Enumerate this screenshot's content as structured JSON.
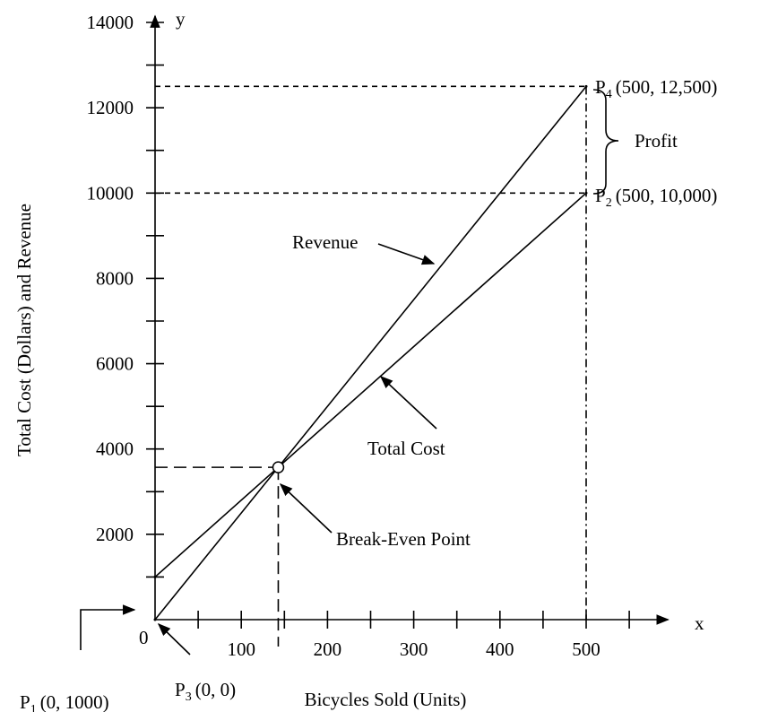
{
  "chart_data": {
    "type": "line",
    "x_label": "Bicycles Sold (Units)",
    "y_label": "Total Cost (Dollars) and Revenue",
    "x_axis_name": "x",
    "y_axis_name": "y",
    "origin_label": "0",
    "xlim": [
      0,
      595
    ],
    "ylim": [
      0,
      14150
    ],
    "xticks": [
      100,
      200,
      300,
      400,
      500
    ],
    "yticks": [
      2000,
      4000,
      6000,
      8000,
      10000,
      12000,
      14000
    ],
    "xminorticks": [
      50,
      150,
      250,
      350,
      450,
      550
    ],
    "yminorticks": [
      1000,
      3000,
      5000,
      7000,
      9000,
      11000,
      13000
    ],
    "color": "#000000",
    "series": [
      {
        "name": "Revenue",
        "x": [
          0,
          500
        ],
        "values": [
          0,
          12500
        ]
      },
      {
        "name": "Total Cost",
        "x": [
          0,
          500
        ],
        "values": [
          1000,
          10000
        ]
      }
    ],
    "points": [
      {
        "label": "P",
        "subscript": "1",
        "text": "(0, 1000)",
        "x": 0,
        "y": 1000
      },
      {
        "label": "P",
        "subscript": "2",
        "text": "(500, 10,000)",
        "x": 500,
        "y": 10000
      },
      {
        "label": "P",
        "subscript": "3",
        "text": "(0, 0)",
        "x": 0,
        "y": 0
      },
      {
        "label": "P",
        "subscript": "4",
        "text": "(500, 12,500)",
        "x": 500,
        "y": 12500
      }
    ],
    "break_even": {
      "label": "Break-Even Point",
      "x": 142.9,
      "y": 3571
    },
    "profit_label": "Profit"
  }
}
